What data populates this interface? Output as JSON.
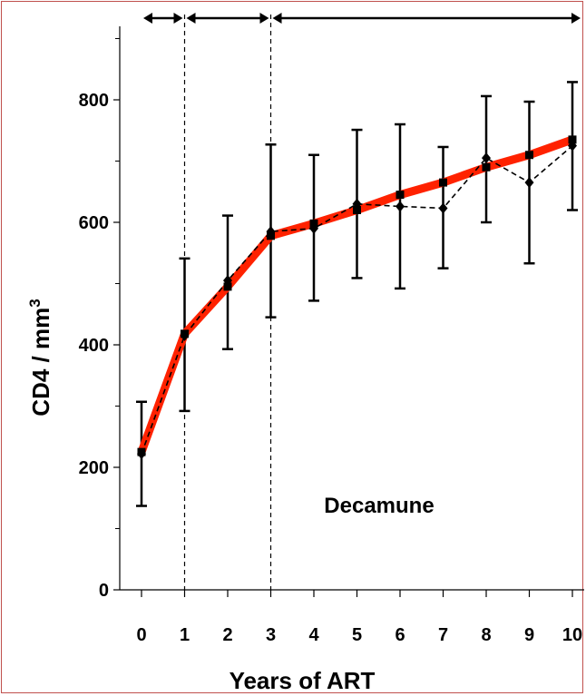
{
  "chart_data": {
    "type": "line",
    "xlabel": "Years of ART",
    "ylabel": "CD4 / mm",
    "ylabel_superscript": "3",
    "annotation": "Decamune",
    "xlim": [
      -0.5,
      10.5
    ],
    "ylim": [
      0,
      920
    ],
    "x_ticks": [
      0,
      1,
      2,
      3,
      4,
      5,
      6,
      7,
      8,
      9,
      10
    ],
    "x_tick_labels": [
      "0",
      "1",
      "2",
      "3",
      "4",
      "5",
      "6",
      "7",
      "8",
      "9",
      "10"
    ],
    "y_ticks": [
      0,
      200,
      400,
      600,
      800
    ],
    "y_tick_labels": [
      "0",
      "200",
      "400",
      "600",
      "800"
    ],
    "y_minor_ticks": [
      100,
      300,
      500,
      700,
      900
    ],
    "vertical_dividers": [
      1,
      3
    ],
    "period_arrows": [
      [
        0,
        1
      ],
      [
        1,
        3
      ],
      [
        3,
        10.4
      ]
    ],
    "grid": false,
    "legend": "none",
    "series": [
      {
        "style": "thick-solid-squares",
        "color": "#ff2200",
        "x": [
          0,
          1,
          2,
          3,
          4,
          5,
          6,
          7,
          8,
          9,
          10
        ],
        "values": [
          225,
          418,
          495,
          578,
          598,
          620,
          645,
          665,
          690,
          710,
          735
        ]
      },
      {
        "style": "dashed-diamonds",
        "color": "#000000",
        "x": [
          0,
          1,
          2,
          3,
          4,
          5,
          6,
          7,
          8,
          9,
          10
        ],
        "values": [
          222,
          415,
          505,
          585,
          590,
          630,
          626,
          623,
          705,
          665,
          725
        ],
        "error_low": [
          137,
          292,
          393,
          445,
          472,
          509,
          492,
          525,
          600,
          533,
          620
        ],
        "error_high": [
          307,
          541,
          611,
          727,
          710,
          751,
          760,
          723,
          806,
          797,
          829
        ]
      }
    ]
  }
}
